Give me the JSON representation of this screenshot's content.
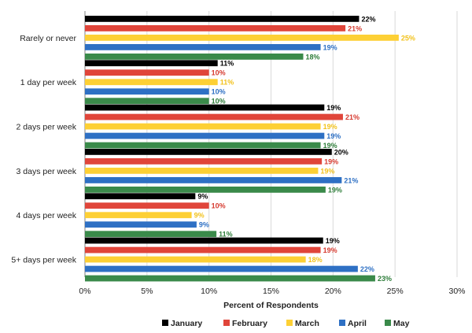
{
  "chart_data": {
    "type": "bar",
    "orientation": "horizontal",
    "categories": [
      "Rarely or never",
      "1 day per week",
      "2 days per week",
      "3 days per week",
      "4 days per week",
      "5+ days per week"
    ],
    "series": [
      {
        "name": "January",
        "color": "#000000",
        "label_color": "#000000",
        "values": [
          22.1,
          10.7,
          19.3,
          19.9,
          8.9,
          19.2
        ],
        "labels": [
          "22%",
          "11%",
          "19%",
          "20%",
          "9%",
          "19%"
        ]
      },
      {
        "name": "February",
        "color": "#e0453a",
        "label_color": "#d63a2f",
        "values": [
          21.0,
          10.0,
          20.8,
          19.1,
          10.0,
          19.0
        ],
        "labels": [
          "21%",
          "10%",
          "21%",
          "19%",
          "10%",
          "19%"
        ]
      },
      {
        "name": "March",
        "color": "#fdd035",
        "label_color": "#f2c21c",
        "values": [
          25.3,
          10.7,
          19.0,
          18.8,
          8.6,
          17.8
        ],
        "labels": [
          "25%",
          "11%",
          "19%",
          "19%",
          "9%",
          "18%"
        ]
      },
      {
        "name": "April",
        "color": "#2e70c4",
        "label_color": "#2e70c4",
        "values": [
          19.0,
          10.0,
          19.3,
          20.7,
          9.0,
          22.0
        ],
        "labels": [
          "19%",
          "10%",
          "19%",
          "21%",
          "9%",
          "22%"
        ]
      },
      {
        "name": "May",
        "color": "#3a8a4a",
        "label_color": "#2e7d3a",
        "values": [
          17.6,
          10.0,
          19.0,
          19.4,
          10.6,
          23.4
        ],
        "labels": [
          "18%",
          "10%",
          "19%",
          "19%",
          "11%",
          "23%"
        ]
      }
    ],
    "xlim": [
      0,
      30
    ],
    "xticks": [
      0,
      5,
      10,
      15,
      20,
      25,
      30
    ],
    "xtick_labels": [
      "0%",
      "5%",
      "10%",
      "15%",
      "20%",
      "25%",
      "30%"
    ],
    "xlabel": "Percent of Respondents",
    "ylabel": "",
    "title": "",
    "grid": "vertical",
    "legend_position": "bottom"
  }
}
